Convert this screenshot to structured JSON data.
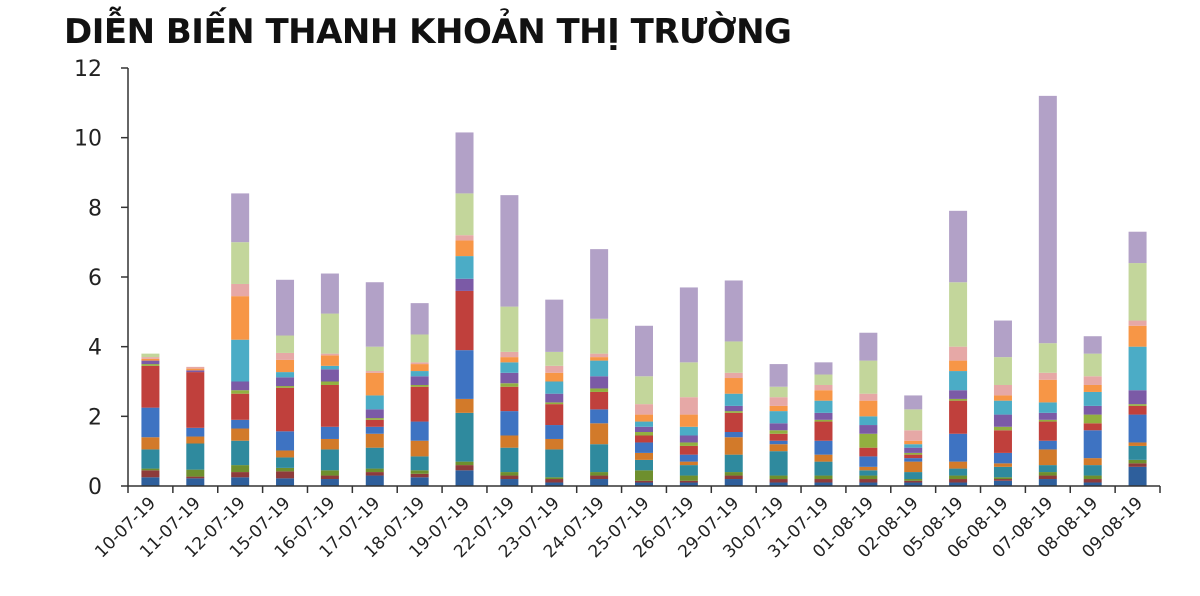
{
  "title": "DIỄN BIẾN THANH KHOẢN THỊ TRƯỜNG",
  "chart_data": {
    "type": "bar",
    "stacked": true,
    "title": "DIỄN BIẾN THANH KHOẢN THỊ TRƯỜNG",
    "xlabel": "",
    "ylabel": "",
    "ylim": [
      0,
      12
    ],
    "yticks": [
      0,
      2,
      4,
      6,
      8,
      10,
      12
    ],
    "grid": false,
    "legend": "none",
    "categories": [
      "10-07-19",
      "11-07-19",
      "12-07-19",
      "15-07-19",
      "16-07-19",
      "17-07-19",
      "18-07-19",
      "19-07-19",
      "22-07-19",
      "23-07-19",
      "24-07-19",
      "25-07-19",
      "26-07-19",
      "29-07-19",
      "30-07-19",
      "31-07-19",
      "01-08-19",
      "02-08-19",
      "05-08-19",
      "06-08-19",
      "07-08-19",
      "08-08-19",
      "09-08-19"
    ],
    "series": [
      {
        "color": "#2e5f9c",
        "values": [
          0.25,
          0.22,
          0.25,
          0.22,
          0.2,
          0.3,
          0.25,
          0.45,
          0.2,
          0.1,
          0.2,
          0.1,
          0.1,
          0.2,
          0.1,
          0.1,
          0.1,
          0.1,
          0.1,
          0.15,
          0.2,
          0.1,
          0.55
        ]
      },
      {
        "color": "#8e3b3b",
        "values": [
          0.2,
          0.05,
          0.15,
          0.2,
          0.1,
          0.1,
          0.1,
          0.15,
          0.1,
          0.1,
          0.1,
          0.05,
          0.05,
          0.1,
          0.1,
          0.1,
          0.1,
          0.05,
          0.1,
          0.05,
          0.1,
          0.1,
          0.1
        ]
      },
      {
        "color": "#6e8f2e",
        "values": [
          0.05,
          0.2,
          0.2,
          0.1,
          0.15,
          0.1,
          0.1,
          0.1,
          0.1,
          0.05,
          0.1,
          0.3,
          0.15,
          0.1,
          0.1,
          0.1,
          0.1,
          0.05,
          0.1,
          0.05,
          0.1,
          0.1,
          0.1
        ]
      },
      {
        "color": "#2f8a9e",
        "values": [
          0.55,
          0.75,
          0.7,
          0.3,
          0.6,
          0.6,
          0.4,
          1.4,
          0.7,
          0.8,
          0.8,
          0.3,
          0.3,
          0.5,
          0.7,
          0.4,
          0.15,
          0.2,
          0.2,
          0.3,
          0.2,
          0.3,
          0.4
        ]
      },
      {
        "color": "#d27a2a",
        "values": [
          0.35,
          0.2,
          0.35,
          0.2,
          0.3,
          0.4,
          0.45,
          0.4,
          0.35,
          0.3,
          0.6,
          0.2,
          0.1,
          0.5,
          0.2,
          0.2,
          0.1,
          0.3,
          0.2,
          0.1,
          0.45,
          0.2,
          0.1
        ]
      },
      {
        "color": "#3e73c2",
        "values": [
          0.85,
          0.25,
          0.25,
          0.55,
          0.35,
          0.2,
          0.55,
          1.4,
          0.7,
          0.4,
          0.4,
          0.3,
          0.2,
          0.15,
          0.1,
          0.4,
          0.3,
          0.1,
          0.8,
          0.3,
          0.25,
          0.8,
          0.8
        ]
      },
      {
        "color": "#c0403c",
        "values": [
          1.2,
          1.6,
          0.75,
          1.25,
          1.2,
          0.2,
          1.0,
          1.7,
          0.7,
          0.6,
          0.5,
          0.2,
          0.25,
          0.55,
          0.2,
          0.55,
          0.25,
          0.1,
          0.95,
          0.65,
          0.55,
          0.2,
          0.25
        ]
      },
      {
        "color": "#92b040",
        "values": [
          0.05,
          0.0,
          0.1,
          0.05,
          0.1,
          0.05,
          0.05,
          0.0,
          0.1,
          0.05,
          0.1,
          0.1,
          0.1,
          0.05,
          0.1,
          0.05,
          0.4,
          0.05,
          0.05,
          0.1,
          0.05,
          0.25,
          0.05
        ]
      },
      {
        "color": "#7b5aa6",
        "values": [
          0.1,
          0.05,
          0.25,
          0.25,
          0.35,
          0.25,
          0.25,
          0.35,
          0.3,
          0.25,
          0.35,
          0.15,
          0.2,
          0.15,
          0.2,
          0.2,
          0.25,
          0.15,
          0.25,
          0.35,
          0.2,
          0.25,
          0.4
        ]
      },
      {
        "color": "#4bacc6",
        "values": [
          0.0,
          0.0,
          1.2,
          0.15,
          0.1,
          0.4,
          0.15,
          0.65,
          0.3,
          0.35,
          0.45,
          0.15,
          0.25,
          0.35,
          0.35,
          0.35,
          0.25,
          0.1,
          0.55,
          0.4,
          0.3,
          0.4,
          1.25
        ]
      },
      {
        "color": "#f79646",
        "values": [
          0.05,
          0.05,
          1.25,
          0.35,
          0.3,
          0.65,
          0.2,
          0.45,
          0.15,
          0.25,
          0.1,
          0.2,
          0.35,
          0.45,
          0.15,
          0.3,
          0.45,
          0.1,
          0.3,
          0.15,
          0.65,
          0.2,
          0.6
        ]
      },
      {
        "color": "#e6a8a6",
        "values": [
          0.05,
          0.05,
          0.35,
          0.2,
          0.05,
          0.05,
          0.05,
          0.15,
          0.15,
          0.2,
          0.1,
          0.3,
          0.5,
          0.15,
          0.25,
          0.15,
          0.2,
          0.3,
          0.4,
          0.3,
          0.2,
          0.25,
          0.15
        ]
      },
      {
        "color": "#c3d69b",
        "values": [
          0.1,
          0.0,
          1.2,
          0.5,
          1.15,
          0.7,
          0.8,
          1.2,
          1.3,
          0.4,
          1.0,
          0.8,
          1.0,
          0.9,
          0.3,
          0.3,
          0.95,
          0.6,
          1.85,
          0.8,
          0.85,
          0.65,
          1.65
        ]
      },
      {
        "color": "#b2a1c7",
        "values": [
          0.0,
          0.0,
          1.4,
          1.6,
          1.15,
          1.85,
          0.9,
          1.75,
          3.2,
          1.5,
          2.0,
          1.45,
          2.15,
          1.75,
          0.65,
          0.35,
          0.8,
          0.4,
          2.05,
          1.05,
          7.1,
          0.5,
          0.9
        ]
      }
    ]
  }
}
